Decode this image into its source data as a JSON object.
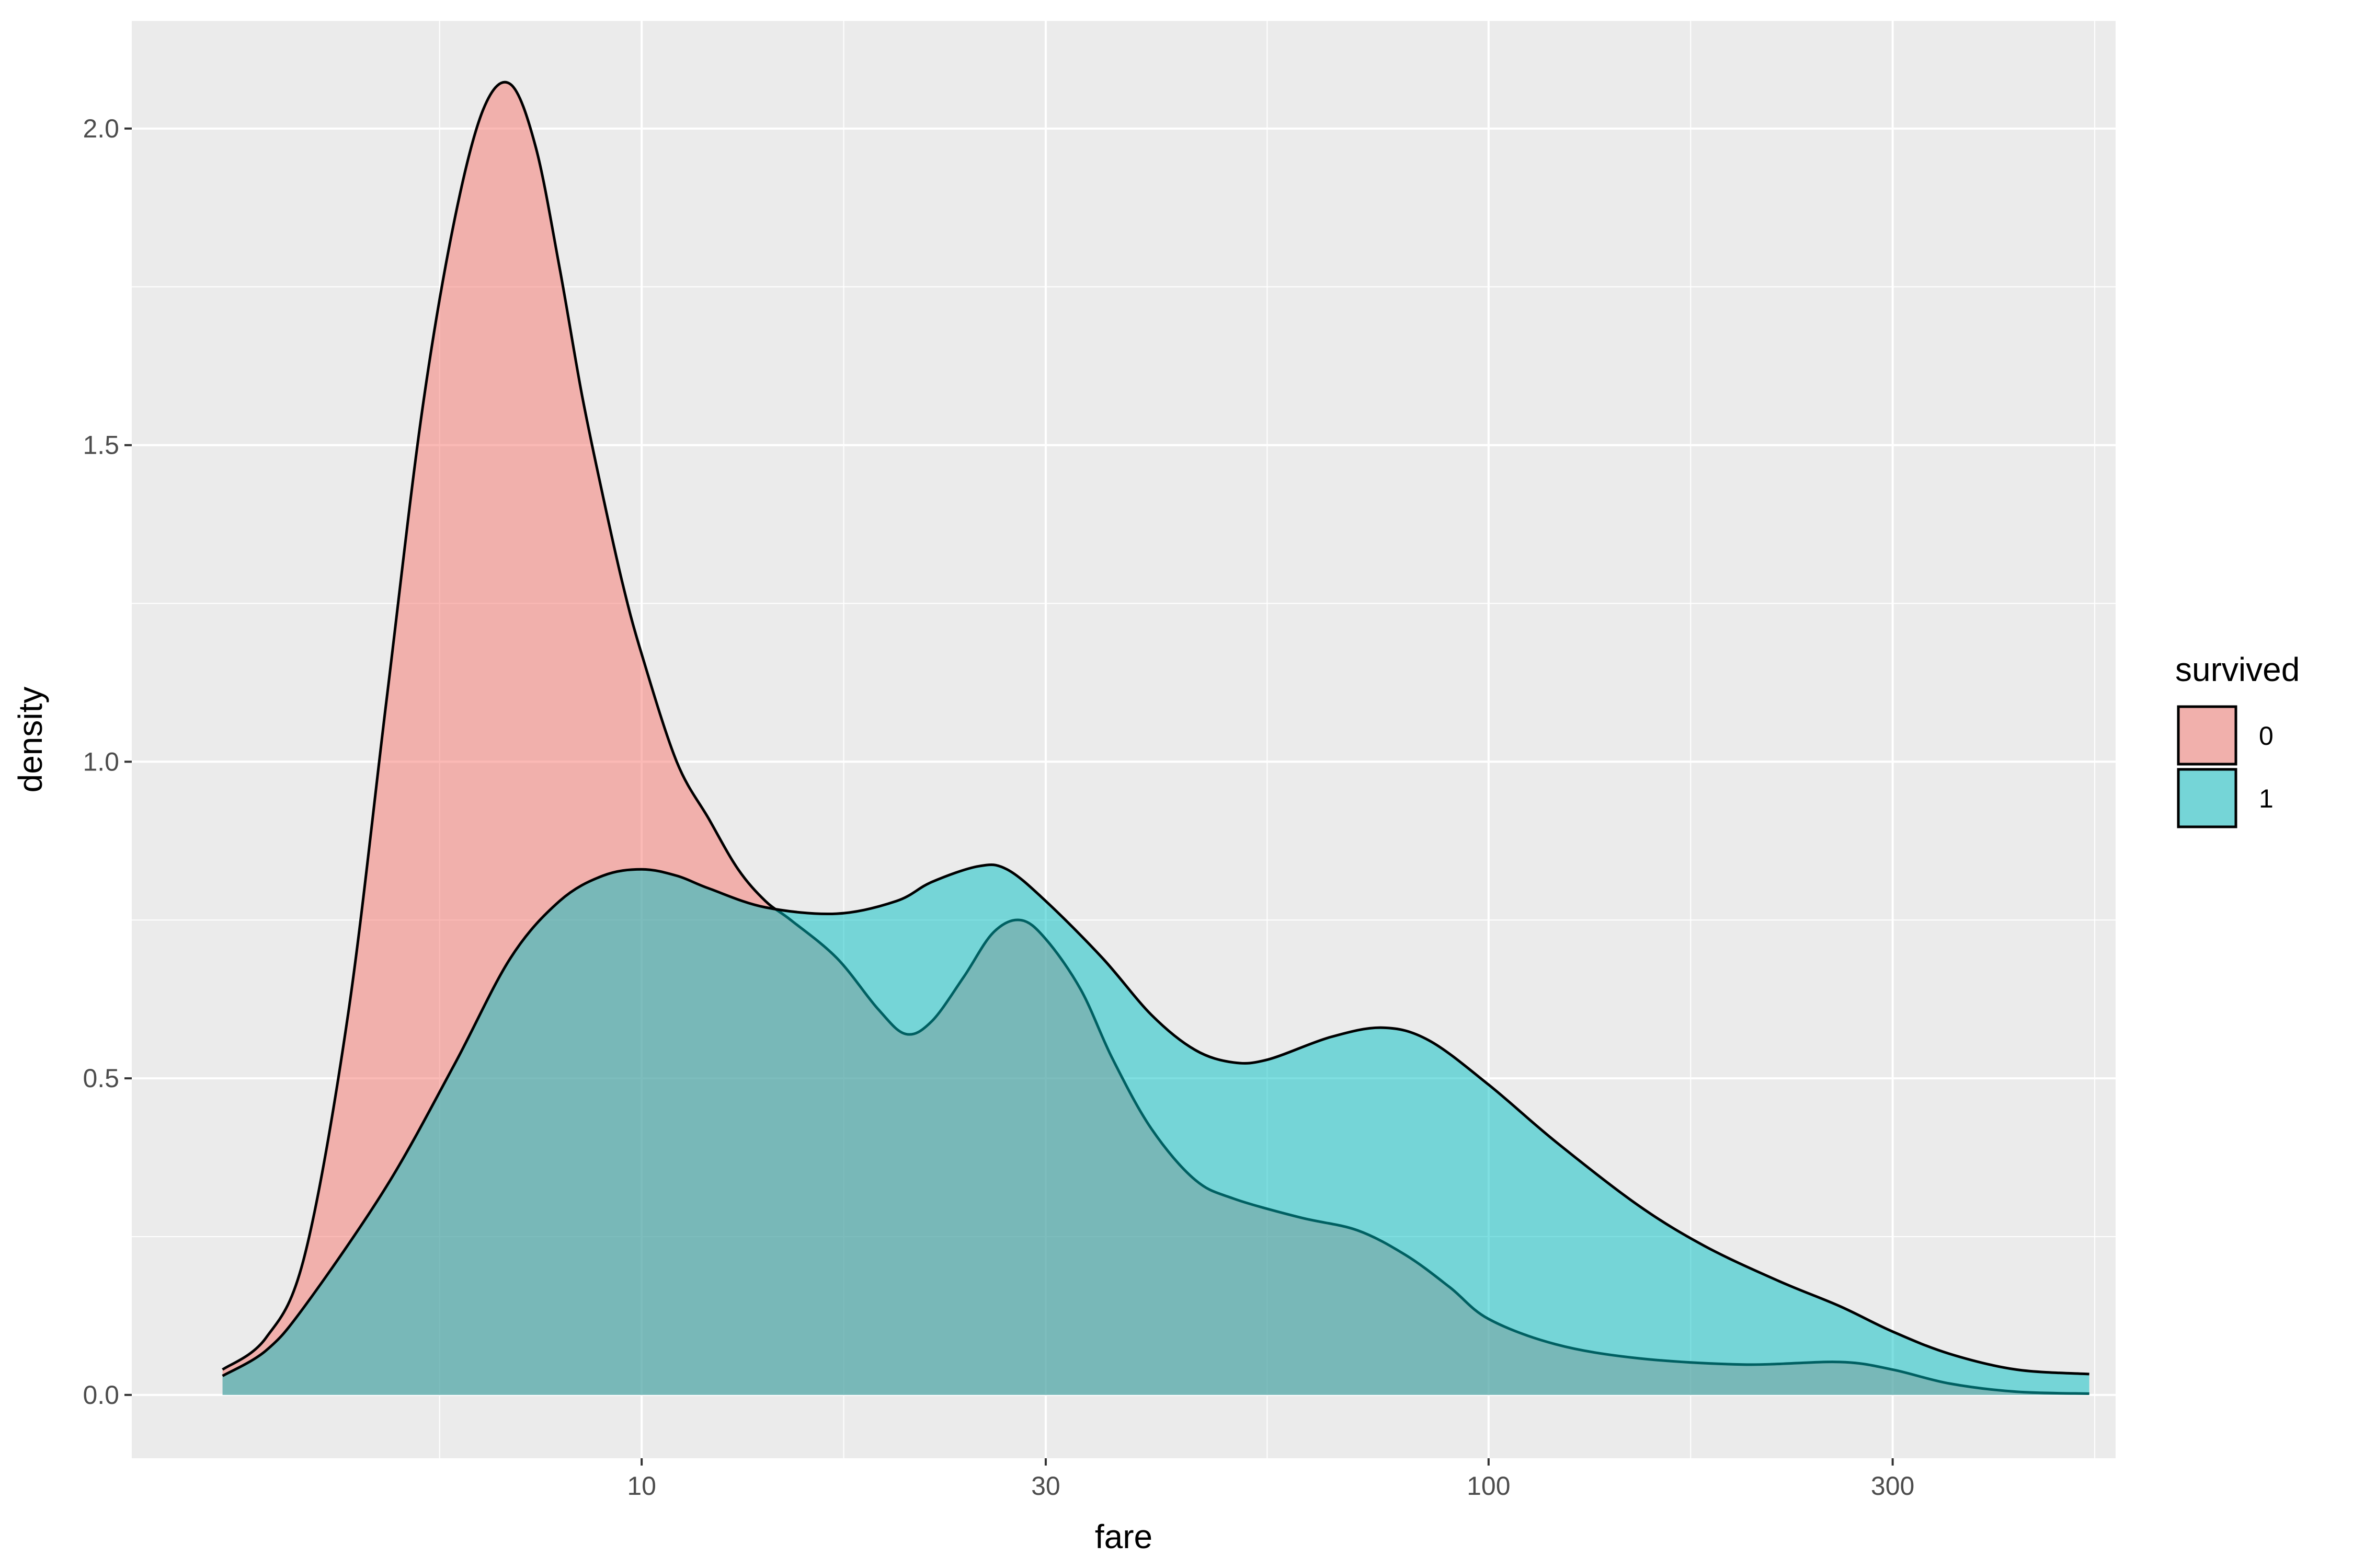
{
  "chart_data": {
    "type": "area",
    "title": "",
    "xlabel": "fare",
    "ylabel": "density",
    "x_scale": "log10",
    "xlim": [
      2.5,
      550
    ],
    "ylim": [
      -0.1,
      2.17
    ],
    "x_ticks": [
      10,
      30,
      100,
      300
    ],
    "x_tick_labels": [
      "10",
      "30",
      "100",
      "300"
    ],
    "y_ticks": [
      0,
      0.5,
      1,
      1.5,
      2
    ],
    "y_tick_labels": [
      "0.0",
      "0.5",
      "1.0",
      "1.5",
      "2.0"
    ],
    "grid": true,
    "legend": {
      "title": "survived",
      "position": "right"
    },
    "series": [
      {
        "name": "0",
        "fill": "#F8766D",
        "points": [
          [
            3.2,
            0.04
          ],
          [
            3.6,
            0.09
          ],
          [
            4.0,
            0.22
          ],
          [
            4.5,
            0.6
          ],
          [
            5.0,
            1.1
          ],
          [
            5.5,
            1.55
          ],
          [
            6.0,
            1.85
          ],
          [
            6.5,
            2.03
          ],
          [
            7.0,
            2.07
          ],
          [
            7.5,
            1.97
          ],
          [
            8.0,
            1.78
          ],
          [
            8.5,
            1.58
          ],
          [
            9.0,
            1.42
          ],
          [
            9.5,
            1.28
          ],
          [
            10.0,
            1.17
          ],
          [
            11.0,
            1.0
          ],
          [
            12.0,
            0.91
          ],
          [
            13.0,
            0.83
          ],
          [
            14.0,
            0.78
          ],
          [
            15.0,
            0.75
          ],
          [
            17.0,
            0.69
          ],
          [
            19.0,
            0.61
          ],
          [
            20.5,
            0.57
          ],
          [
            22.0,
            0.59
          ],
          [
            24.0,
            0.66
          ],
          [
            26.0,
            0.73
          ],
          [
            28.0,
            0.75
          ],
          [
            30.0,
            0.72
          ],
          [
            33.0,
            0.64
          ],
          [
            36.0,
            0.53
          ],
          [
            40.0,
            0.42
          ],
          [
            45.0,
            0.34
          ],
          [
            50.0,
            0.31
          ],
          [
            60.0,
            0.28
          ],
          [
            70.0,
            0.26
          ],
          [
            80.0,
            0.22
          ],
          [
            90.0,
            0.17
          ],
          [
            100.0,
            0.12
          ],
          [
            120.0,
            0.08
          ],
          [
            150.0,
            0.058
          ],
          [
            200.0,
            0.048
          ],
          [
            260.0,
            0.052
          ],
          [
            300.0,
            0.04
          ],
          [
            350.0,
            0.018
          ],
          [
            420.0,
            0.005
          ],
          [
            512.0,
            0.002
          ]
        ]
      },
      {
        "name": "1",
        "fill": "#00BFC4",
        "points": [
          [
            3.2,
            0.03
          ],
          [
            3.6,
            0.07
          ],
          [
            4.0,
            0.14
          ],
          [
            5.0,
            0.33
          ],
          [
            6.0,
            0.52
          ],
          [
            7.0,
            0.69
          ],
          [
            8.0,
            0.78
          ],
          [
            9.0,
            0.82
          ],
          [
            10.0,
            0.83
          ],
          [
            11.0,
            0.82
          ],
          [
            12.0,
            0.8
          ],
          [
            14.0,
            0.77
          ],
          [
            17.0,
            0.76
          ],
          [
            20.0,
            0.78
          ],
          [
            22.0,
            0.81
          ],
          [
            25.0,
            0.835
          ],
          [
            27.0,
            0.83
          ],
          [
            30.0,
            0.78
          ],
          [
            35.0,
            0.69
          ],
          [
            40.0,
            0.6
          ],
          [
            45.0,
            0.545
          ],
          [
            50.0,
            0.525
          ],
          [
            55.0,
            0.53
          ],
          [
            65.0,
            0.565
          ],
          [
            75.0,
            0.58
          ],
          [
            85.0,
            0.56
          ],
          [
            100.0,
            0.49
          ],
          [
            120.0,
            0.4
          ],
          [
            150.0,
            0.3
          ],
          [
            180.0,
            0.235
          ],
          [
            220.0,
            0.18
          ],
          [
            260.0,
            0.14
          ],
          [
            300.0,
            0.1
          ],
          [
            350.0,
            0.065
          ],
          [
            420.0,
            0.04
          ],
          [
            512.0,
            0.033
          ]
        ]
      }
    ]
  }
}
